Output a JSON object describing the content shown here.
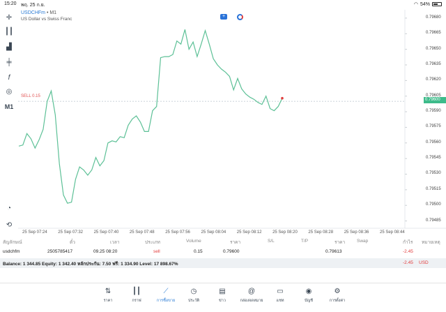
{
  "status": {
    "time": "15:20",
    "date": "พฤ. 25 ก.ย.",
    "battery": "54%"
  },
  "toolbar": {
    "timeframe": "M1"
  },
  "chart": {
    "symbol": "USDCHFm",
    "timeframe_suffix": " • M1",
    "description": "US Dollar vs Swiss Franc",
    "sell_label": "SELL 0.15",
    "current_price": "0.79600",
    "price_ticks": [
      "0.79680",
      "0.79665",
      "0.79650",
      "0.79635",
      "0.79620",
      "0.79605",
      "0.79590",
      "0.79575",
      "0.79560",
      "0.79545",
      "0.79530",
      "0.79515",
      "0.79500",
      "0.79485"
    ],
    "time_ticks": [
      "25 Sep 07:24",
      "25 Sep 07:32",
      "25 Sep 07:40",
      "25 Sep 07:48",
      "25 Sep 07:56",
      "25 Sep 08:04",
      "25 Sep 08:12",
      "25 Sep 08:20",
      "25 Sep 08:28",
      "25 Sep 08:36",
      "25 Sep 08:44"
    ],
    "line_color": "#5cc096"
  },
  "chart_data": {
    "type": "line",
    "title": "",
    "ylim": [
      0.79478,
      0.79688
    ],
    "values": [
      0.79557,
      0.79558,
      0.79569,
      0.79564,
      0.79555,
      0.79563,
      0.79573,
      0.796,
      0.7961,
      0.79587,
      0.7954,
      0.7951,
      0.79502,
      0.79503,
      0.79525,
      0.79537,
      0.79534,
      0.79529,
      0.79534,
      0.79546,
      0.79538,
      0.79543,
      0.7956,
      0.79562,
      0.79561,
      0.79566,
      0.79565,
      0.79577,
      0.79583,
      0.79586,
      0.7958,
      0.79571,
      0.79571,
      0.79591,
      0.79595,
      0.79642,
      0.79643,
      0.79643,
      0.79645,
      0.79658,
      0.79655,
      0.79669,
      0.7965,
      0.79657,
      0.79643,
      0.79655,
      0.79668,
      0.79655,
      0.79641,
      0.79635,
      0.79631,
      0.79628,
      0.79624,
      0.79611,
      0.79622,
      0.79612,
      0.79607,
      0.79604,
      0.79602,
      0.79599,
      0.79597,
      0.79605,
      0.79593,
      0.79591,
      0.79595,
      0.79603
    ]
  },
  "table": {
    "headers": {
      "symbol": "สัญลักษณ์",
      "ticket": "ตั๋ว",
      "time": "เวลา",
      "type": "ประเภท",
      "volume": "Volume",
      "price": "ราคา",
      "sl": "S/L",
      "tp": "T/P",
      "current_price": "ราคา",
      "swap": "Swap",
      "profit": "กำไร",
      "comment": "หมายเหตุ"
    },
    "rows": [
      {
        "symbol": "usdchfm",
        "ticket": "2505785417",
        "time": "09.25 08:20",
        "type": "sell",
        "volume": "0.15",
        "price": "0.79600",
        "current_price": "0.79613",
        "profit": "-2.45"
      }
    ],
    "balance_text": "Balance: 1 344.85 Equity: 1 342.40 หลักประกัน: 7.50 ฟรี: 1 334.90 Level: 17 898.67%",
    "total_profit": "-2.45",
    "currency": "USD"
  },
  "tabs": [
    {
      "label": "ราคา",
      "icon": "arrows-updown-icon"
    },
    {
      "label": "กราฟ",
      "icon": "candles-icon"
    },
    {
      "label": "การซื้อขาย",
      "icon": "chart-line-icon",
      "active": true
    },
    {
      "label": "ประวัติ",
      "icon": "history-icon"
    },
    {
      "label": "ข่าว",
      "icon": "news-icon"
    },
    {
      "label": "กล่องจดหมาย",
      "icon": "at-icon"
    },
    {
      "label": "แชท",
      "icon": "chat-icon"
    },
    {
      "label": "บัญชี",
      "icon": "user-icon"
    },
    {
      "label": "การตั้งค่า",
      "icon": "gear-icon"
    }
  ]
}
